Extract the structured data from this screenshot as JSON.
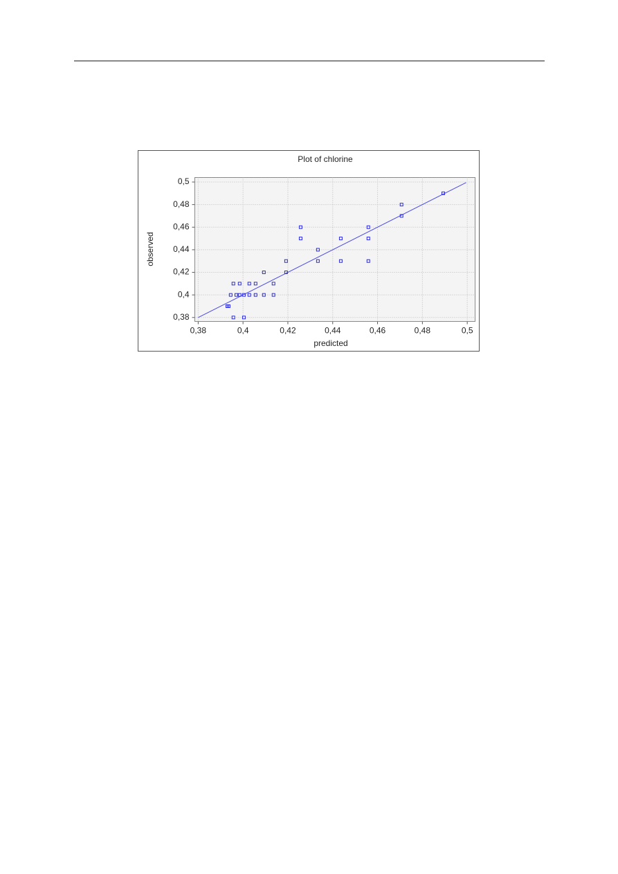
{
  "chart_data": {
    "type": "scatter",
    "title": "Plot of chlorine",
    "x_label": "predicted",
    "y_label": "observed",
    "x": [
      0.393,
      0.3936,
      0.3945,
      0.3957,
      0.3957,
      0.397,
      0.3985,
      0.3985,
      0.4004,
      0.4004,
      0.4028,
      0.4028,
      0.4056,
      0.4056,
      0.4093,
      0.4093,
      0.4136,
      0.4136,
      0.4192,
      0.4192,
      0.4257,
      0.4257,
      0.4334,
      0.4334,
      0.4436,
      0.4436,
      0.4559,
      0.4559,
      0.4559,
      0.4707,
      0.4707,
      0.4893
    ],
    "series": [
      {
        "color": "#2a2ae0",
        "values": [
          0.39,
          0.39,
          0.4,
          0.41,
          0.38,
          0.4,
          0.41,
          0.4,
          0.4,
          0.38,
          0.41,
          0.4,
          0.41,
          0.4,
          0.42,
          0.4,
          0.41,
          0.4,
          0.43,
          0.42,
          0.46,
          0.45,
          0.44,
          0.43,
          0.45,
          0.43,
          0.46,
          0.45,
          0.43,
          0.48,
          0.47,
          0.49
        ]
      }
    ],
    "fit_line": {
      "x": [
        0.38,
        0.4995
      ],
      "y": [
        0.38,
        0.4995
      ],
      "color": "#4a4ae6"
    },
    "xlim": [
      0.3785,
      0.5035
    ],
    "ylim": [
      0.3765,
      0.504
    ],
    "xticks": [
      {
        "value": 0.38,
        "label": "0,38"
      },
      {
        "value": 0.4,
        "label": "0,4"
      },
      {
        "value": 0.42,
        "label": "0,42"
      },
      {
        "value": 0.44,
        "label": "0,44"
      },
      {
        "value": 0.46,
        "label": "0,46"
      },
      {
        "value": 0.48,
        "label": "0,48"
      },
      {
        "value": 0.5,
        "label": "0,5"
      }
    ],
    "yticks": [
      {
        "value": 0.38,
        "label": "0,38"
      },
      {
        "value": 0.4,
        "label": "0,4"
      },
      {
        "value": 0.42,
        "label": "0,42"
      },
      {
        "value": 0.44,
        "label": "0,44"
      },
      {
        "value": 0.46,
        "label": "0,46"
      },
      {
        "value": 0.48,
        "label": "0,48"
      },
      {
        "value": 0.5,
        "label": "0,5"
      }
    ],
    "grid": true
  }
}
